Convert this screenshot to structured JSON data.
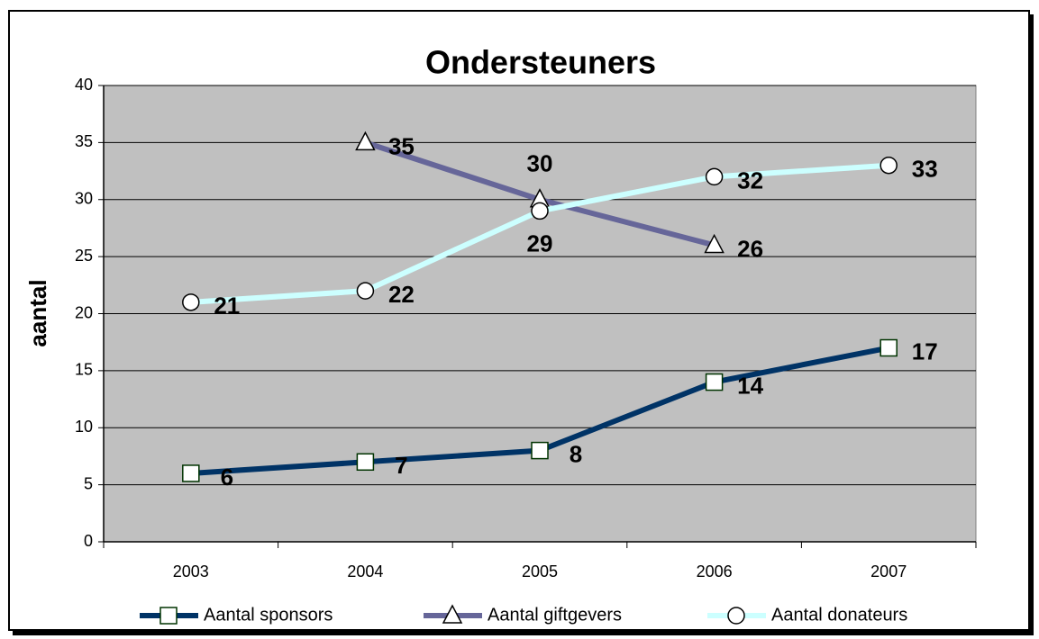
{
  "chart_data": {
    "type": "line",
    "title": "Ondersteuners",
    "ylabel": "aantal",
    "categories": [
      "2003",
      "2004",
      "2005",
      "2006",
      "2007"
    ],
    "series": [
      {
        "name": "Aantal sponsors",
        "color": "#003366",
        "marker": "square",
        "values": [
          6,
          7,
          8,
          14,
          17
        ]
      },
      {
        "name": "Aantal giftgevers",
        "color": "#666699",
        "marker": "triangle",
        "values": [
          null,
          35,
          30,
          26,
          null
        ]
      },
      {
        "name": "Aantal donateurs",
        "color": "#ccffff",
        "marker": "circle",
        "values": [
          21,
          22,
          29,
          32,
          33
        ]
      }
    ],
    "ylim": [
      0,
      40
    ],
    "yticks": [
      0,
      5,
      10,
      15,
      20,
      25,
      30,
      35,
      40
    ],
    "grid": true,
    "legend": "bottom"
  }
}
